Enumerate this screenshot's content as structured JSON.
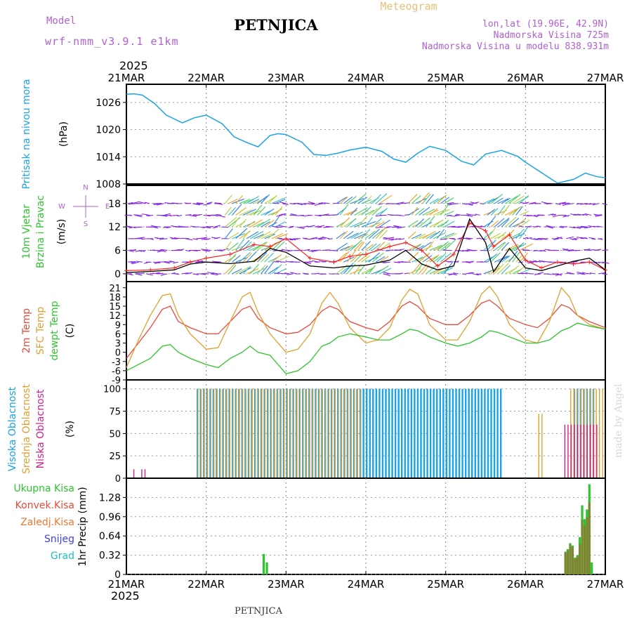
{
  "header": {
    "model_label": "Model",
    "model_name": "wrf-nmm_v3.9.1 e1km",
    "station": "PETNJICA",
    "product": "Meteogram",
    "lonlat": "lon,lat (19.96E, 42.9N)",
    "altitude": "Nadmorska Visina 725m",
    "model_altitude": "Nadmorska Visina u modelu 838.931m",
    "footer_station": "PETNJICA",
    "watermark": "made by Angel"
  },
  "time_axis": {
    "year_label": "2025",
    "dates": [
      "21MAR",
      "22MAR",
      "23MAR",
      "24MAR",
      "25MAR",
      "26MAR",
      "27MAR"
    ]
  },
  "colors": {
    "pressure": "#1aa3e6",
    "temp2m": "#e84a3a",
    "sfc_temp": "#e0a030",
    "dewpoint": "#2ec42e",
    "high_cloud": "#1aa3e6",
    "mid_cloud": "#e0a030",
    "low_cloud": "#d0208c",
    "total_precip": "#2ec42e",
    "conv_precip": "#e84a3a",
    "frz_precip": "#f07830",
    "snow": "#4040e0",
    "hail": "#20c0c0",
    "wind_speed": "#000000",
    "wind_gust": "#ff2020",
    "wind_arrows": "#9020e0"
  },
  "chart_data": [
    {
      "type": "line",
      "panel": "pressure",
      "ylabel_lines": [
        "Pritisak na nivou mora"
      ],
      "unit": "(hPa)",
      "ylim": [
        1008,
        1030
      ],
      "yticks": [
        1008,
        1014,
        1020,
        1026
      ],
      "x_days": [
        0,
        0.1,
        0.2,
        0.35,
        0.5,
        0.7,
        0.85,
        1.0,
        1.2,
        1.35,
        1.5,
        1.65,
        1.8,
        1.9,
        2.0,
        2.2,
        2.35,
        2.5,
        2.65,
        2.8,
        3.0,
        3.2,
        3.35,
        3.5,
        3.65,
        3.8,
        4.0,
        4.2,
        4.35,
        4.5,
        4.7,
        4.9,
        5.0,
        5.2,
        5.4,
        5.6,
        5.75,
        5.9,
        6.0
      ],
      "series": [
        {
          "values": [
            1027.8,
            1027.9,
            1027.6,
            1025.8,
            1023.2,
            1021.5,
            1022.6,
            1023.2,
            1021.3,
            1018.4,
            1017.2,
            1016.2,
            1018.7,
            1019.1,
            1018.9,
            1017.2,
            1014.5,
            1014.3,
            1014.8,
            1015.5,
            1016.1,
            1015.2,
            1013.5,
            1012.8,
            1014.8,
            1016.3,
            1015.4,
            1013.0,
            1012.2,
            1014.6,
            1015.4,
            1014.1,
            1012.8,
            1010.5,
            1008.2,
            1009.0,
            1010.4,
            1009.6,
            1009.4
          ]
        }
      ]
    },
    {
      "type": "line",
      "panel": "wind",
      "ylabel_lines": [
        "10m Vjetar",
        "Brzina i Pravac"
      ],
      "unit": "(m/s)",
      "ylim": [
        -2,
        23
      ],
      "yticks": [
        0,
        6,
        12,
        18
      ],
      "direction_labels": [
        "N",
        "W",
        "E",
        "S"
      ],
      "arrow_rows": [
        18,
        15,
        12,
        9,
        6,
        3,
        0
      ],
      "x_days": [
        0,
        0.3,
        0.6,
        0.8,
        1.0,
        1.3,
        1.6,
        1.8,
        2.0,
        2.3,
        2.6,
        2.8,
        3.0,
        3.3,
        3.5,
        3.7,
        3.9,
        4.1,
        4.3,
        4.5,
        4.6,
        4.8,
        5.0,
        5.2,
        5.4,
        5.6,
        5.8,
        6.0
      ],
      "series": [
        {
          "name": "speed",
          "values": [
            0.3,
            0.6,
            1.0,
            2.5,
            3.0,
            2.6,
            3.2,
            6.5,
            5.5,
            2.0,
            1.5,
            2.0,
            2.2,
            3.5,
            6.0,
            2.5,
            1.0,
            2.0,
            14.0,
            8.0,
            0.5,
            6.5,
            1.5,
            0.8,
            2.0,
            3.2,
            4.0,
            1.0
          ]
        },
        {
          "name": "gust",
          "values": [
            0.8,
            1.0,
            1.5,
            3.0,
            4.0,
            5.0,
            7.5,
            7.0,
            9.0,
            4.0,
            3.0,
            4.5,
            5.0,
            7.0,
            8.0,
            6.0,
            2.0,
            5.0,
            13.0,
            11.0,
            7.0,
            10.0,
            3.5,
            1.5,
            3.0,
            2.5,
            3.0,
            1.0
          ]
        }
      ]
    },
    {
      "type": "line",
      "panel": "temperature",
      "ylabel_lines": [
        "2m Temp",
        "SFC Temp",
        "dewpt Temp"
      ],
      "unit": "(C)",
      "ylim": [
        -9,
        23
      ],
      "yticks": [
        -9,
        -6,
        -3,
        0,
        3,
        6,
        9,
        12,
        15,
        18,
        21
      ],
      "x_days": [
        0,
        0.15,
        0.3,
        0.45,
        0.55,
        0.65,
        0.8,
        1.0,
        1.15,
        1.3,
        1.45,
        1.55,
        1.65,
        1.8,
        2.0,
        2.15,
        2.3,
        2.45,
        2.55,
        2.65,
        2.8,
        3.0,
        3.15,
        3.3,
        3.45,
        3.55,
        3.65,
        3.8,
        4.0,
        4.15,
        4.3,
        4.45,
        4.55,
        4.65,
        4.8,
        5.0,
        5.15,
        5.3,
        5.45,
        5.55,
        5.65,
        5.8,
        6.0
      ],
      "series": [
        {
          "name": "2m",
          "values": [
            -2,
            3,
            8,
            14,
            15,
            10,
            8,
            6,
            6,
            10,
            14,
            15,
            11,
            8,
            6,
            6.5,
            9,
            13.5,
            15,
            14,
            10,
            8,
            7,
            10,
            15,
            16.5,
            15,
            11,
            9,
            9,
            12,
            16,
            17,
            15,
            11,
            9,
            8,
            11,
            15.5,
            14.5,
            12,
            10,
            8
          ]
        },
        {
          "name": "sfc",
          "values": [
            -5,
            4,
            12,
            18.5,
            19,
            12,
            6,
            1,
            1.5,
            10,
            18,
            19.5,
            13,
            6,
            0,
            1,
            6,
            16,
            19.5,
            16,
            8,
            3,
            4,
            8,
            17,
            20.5,
            19,
            9,
            4,
            4,
            10,
            19,
            21.5,
            18,
            9,
            4,
            3,
            10,
            21,
            18,
            12,
            9,
            7.5
          ]
        },
        {
          "name": "dewpt",
          "values": [
            -6,
            -4,
            -2,
            2,
            2.5,
            0,
            -2,
            -4,
            -5,
            -2,
            0,
            2,
            0,
            -1,
            -7,
            -6,
            -3,
            2,
            3,
            5,
            6,
            5,
            4,
            4,
            6,
            7.5,
            7,
            5,
            3,
            2,
            3,
            5,
            7,
            6.5,
            5,
            3,
            3,
            4,
            7,
            8,
            9.5,
            8.5,
            7.5
          ]
        }
      ]
    },
    {
      "type": "bar",
      "panel": "clouds",
      "ylabel_lines": [
        "Visoka Oblacnost",
        "Srednja Oblacnost",
        "Niska Oblacnost"
      ],
      "unit": "(%)",
      "ylim": [
        0,
        100
      ],
      "yticks": [
        0,
        25,
        50,
        75,
        100
      ],
      "series": [
        {
          "name": "high",
          "segments": [
            {
              "from": 0.88,
              "to": 4.68,
              "value": 100
            },
            {
              "from": 5.6,
              "to": 5.85,
              "value": 100
            }
          ]
        },
        {
          "name": "mid",
          "segments": [
            {
              "from": 0.88,
              "to": 2.95,
              "value": 100
            },
            {
              "from": 5.15,
              "to": 5.2,
              "value": 72
            },
            {
              "from": 5.55,
              "to": 5.95,
              "value": 100
            }
          ]
        },
        {
          "name": "low",
          "segments": [
            {
              "from": 0.1,
              "to": 0.1,
              "value": 10
            },
            {
              "from": 0.2,
              "to": 0.25,
              "value": 10
            },
            {
              "from": 5.5,
              "to": 5.9,
              "value": 60
            }
          ]
        }
      ]
    },
    {
      "type": "bar",
      "panel": "precip",
      "ylabel_lines": [
        "1hr Precip"
      ],
      "unit": "(mm)",
      "legend": [
        "Ukupna Kisa",
        "Konvek.Kisa",
        "Zaledj.Kisa",
        "Snijeg",
        "Grad"
      ],
      "ylim": [
        0,
        1.6
      ],
      "yticks": [
        0,
        0.32,
        0.64,
        0.96,
        1.28
      ],
      "x_days": [
        1.72,
        1.76,
        5.5,
        5.53,
        5.56,
        5.59,
        5.62,
        5.65,
        5.68,
        5.71,
        5.74,
        5.77,
        5.8,
        5.83
      ],
      "series": [
        {
          "name": "total",
          "values": [
            0.34,
            0.2,
            0.38,
            0.42,
            0.52,
            0.48,
            0.28,
            0.32,
            0.62,
            1.15,
            0.92,
            1.08,
            1.5,
            0.2
          ]
        },
        {
          "name": "convective",
          "values": [
            0,
            0,
            0.36,
            0.4,
            0.5,
            0.45,
            0.26,
            0.3,
            0.5,
            0.9,
            0.8,
            0.95,
            1.2,
            0
          ]
        }
      ]
    }
  ]
}
